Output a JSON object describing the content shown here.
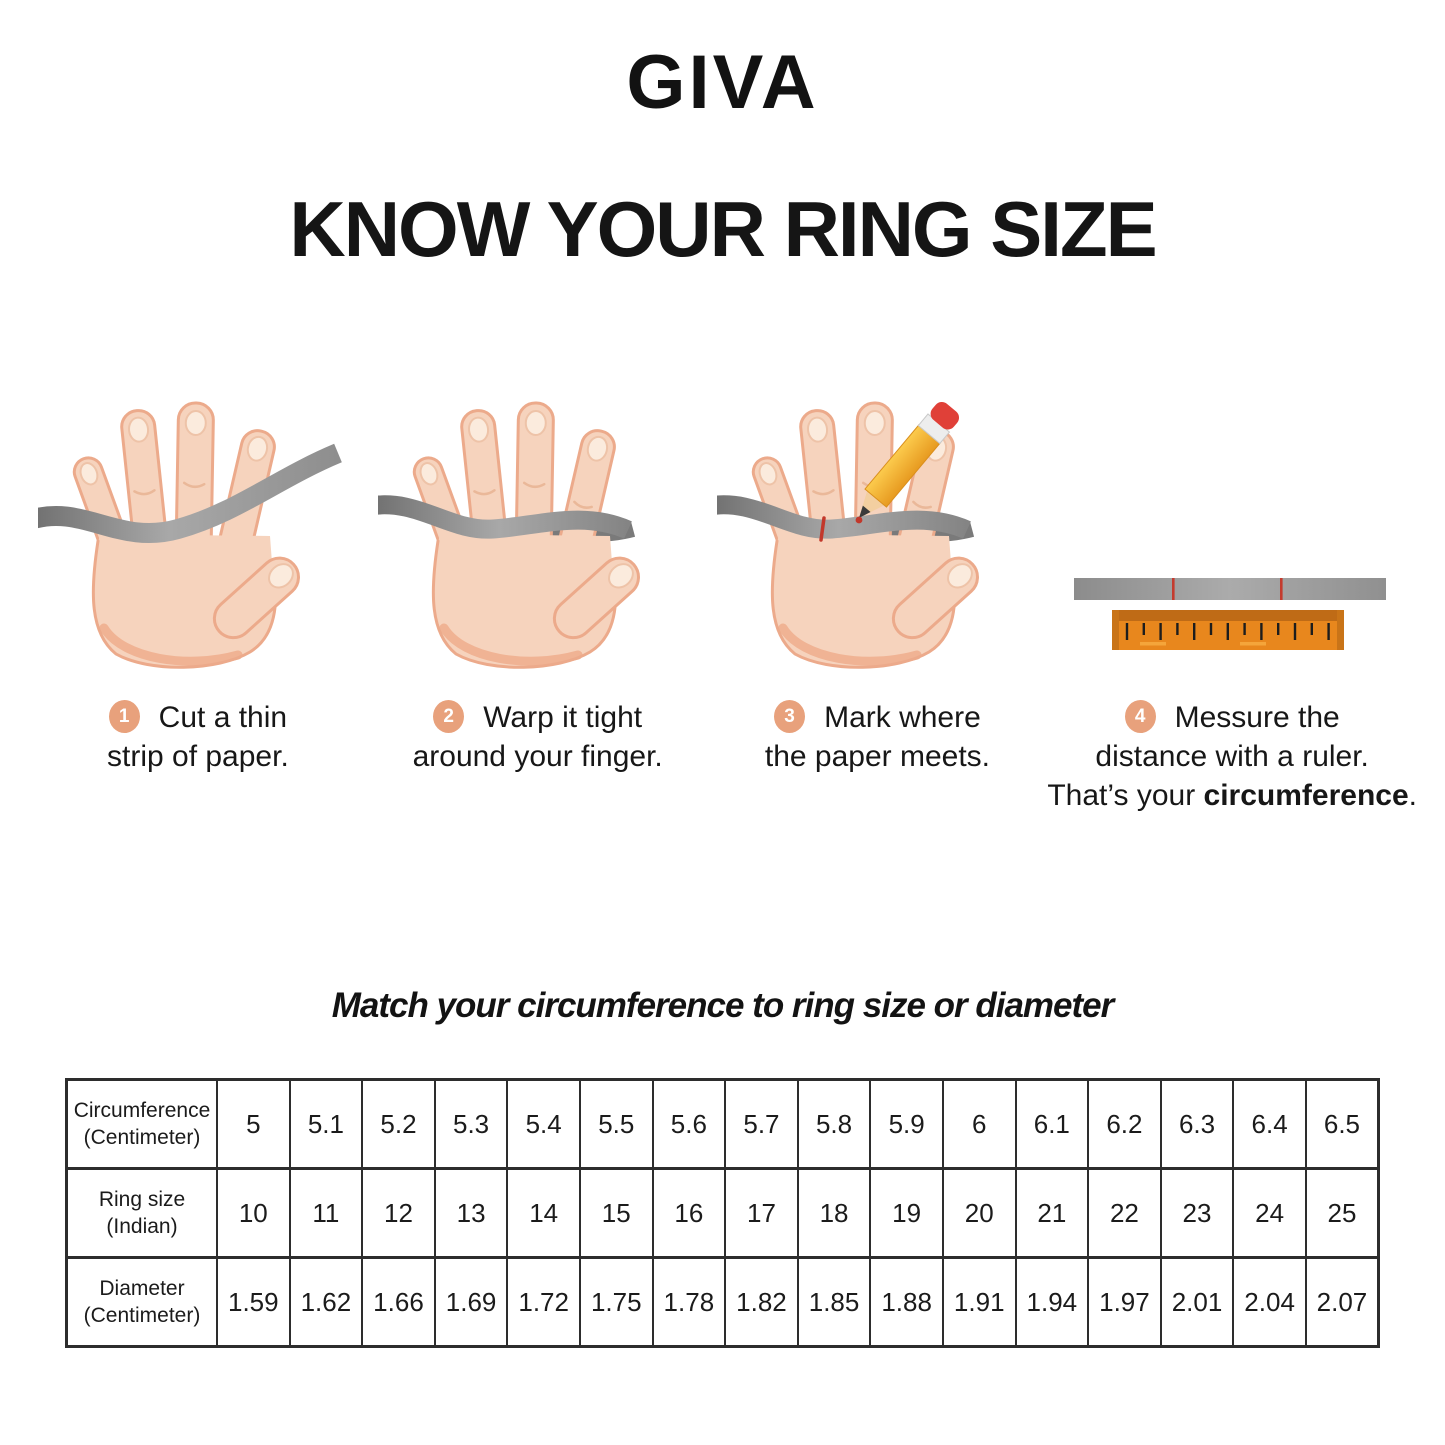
{
  "brand": {
    "logo": "GIVA"
  },
  "title": "KNOW YOUR RING SIZE",
  "steps": [
    {
      "number": "1",
      "lines": [
        "Cut a thin",
        "strip of paper."
      ],
      "illustration": "hand-with-paper-strip"
    },
    {
      "number": "2",
      "lines": [
        "Warp it tight",
        "around your finger."
      ],
      "illustration": "hand-strip-wrapped-around-finger"
    },
    {
      "number": "3",
      "lines": [
        "Mark where",
        "the paper meets."
      ],
      "illustration": "hand-strip-marked-with-pencil"
    },
    {
      "number": "4",
      "lines": [
        "Messure the",
        "distance with a ruler."
      ],
      "line3": {
        "prefix": "That’s your ",
        "bold": "circumference",
        "suffix": "."
      },
      "illustration": "paper-strip-and-ruler"
    }
  ],
  "match_heading": "Match your circumference to ring size or diameter",
  "size_table": {
    "rows": [
      {
        "label": "Circumference",
        "sublabel": "(Centimeter)",
        "values": [
          "5",
          "5.1",
          "5.2",
          "5.3",
          "5.4",
          "5.5",
          "5.6",
          "5.7",
          "5.8",
          "5.9",
          "6",
          "6.1",
          "6.2",
          "6.3",
          "6.4",
          "6.5"
        ]
      },
      {
        "label": "Ring size",
        "sublabel": "(Indian)",
        "values": [
          "10",
          "11",
          "12",
          "13",
          "14",
          "15",
          "16",
          "17",
          "18",
          "19",
          "20",
          "21",
          "22",
          "23",
          "24",
          "25"
        ]
      },
      {
        "label": "Diameter",
        "sublabel": "(Centimeter)",
        "values": [
          "1.59",
          "1.62",
          "1.66",
          "1.69",
          "1.72",
          "1.75",
          "1.78",
          "1.82",
          "1.85",
          "1.88",
          "1.91",
          "1.94",
          "1.97",
          "2.01",
          "2.04",
          "2.07"
        ]
      }
    ]
  },
  "colors": {
    "badge": "#E8A17C",
    "skin": "#F6D3BD",
    "skin_outline": "#ECAA8B",
    "strip_gray": "#8C8C8C",
    "ruler_orange": "#E8871D",
    "ruler_band": "#BF6B16",
    "mark_red": "#C2382B",
    "text": "#141414"
  }
}
